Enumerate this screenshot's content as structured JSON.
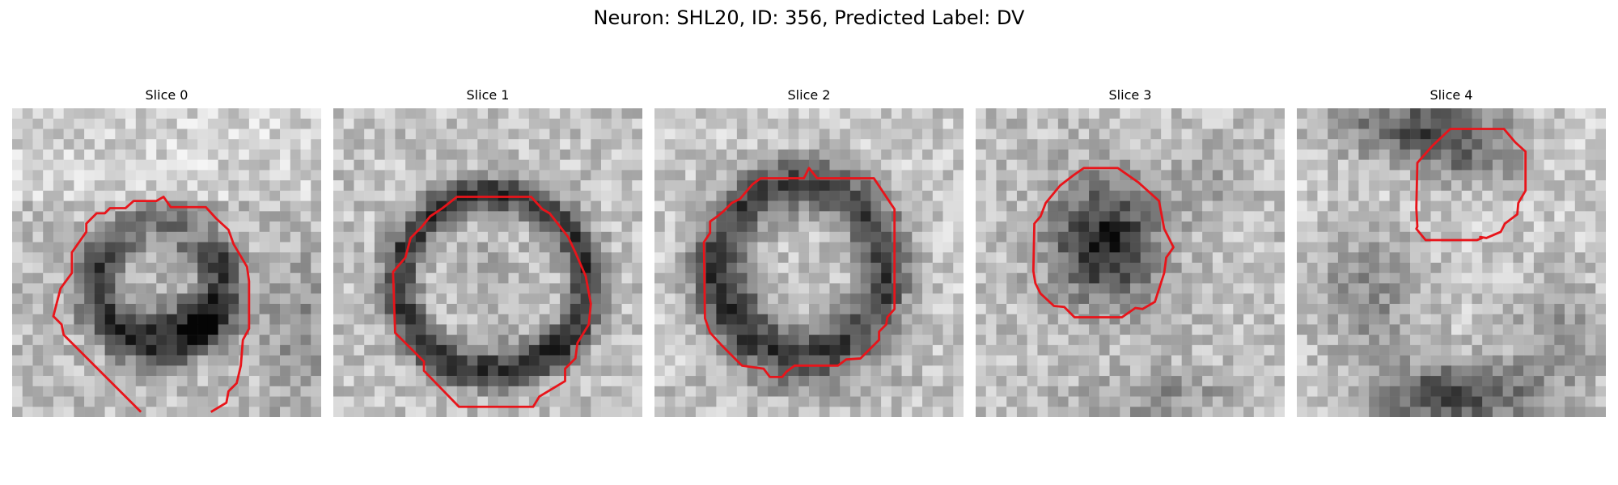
{
  "figure": {
    "title": "Neuron: SHL20, ID: 356, Predicted Label: DV"
  },
  "panels": [
    {
      "title": "Slice 0",
      "cell": "dark ring, lower-right heavy",
      "contour": "open"
    },
    {
      "title": "Slice 1",
      "cell": "dark ring, centered",
      "contour": "closed"
    },
    {
      "title": "Slice 2",
      "cell": "dark ring, thick",
      "contour": "closed"
    },
    {
      "title": "Slice 3",
      "cell": "dark filled blob",
      "contour": "closed"
    },
    {
      "title": "Slice 4",
      "cell": "dark band at top",
      "contour": "closed"
    }
  ],
  "colors": {
    "contour": "#e8141a",
    "background": "#ffffff"
  }
}
